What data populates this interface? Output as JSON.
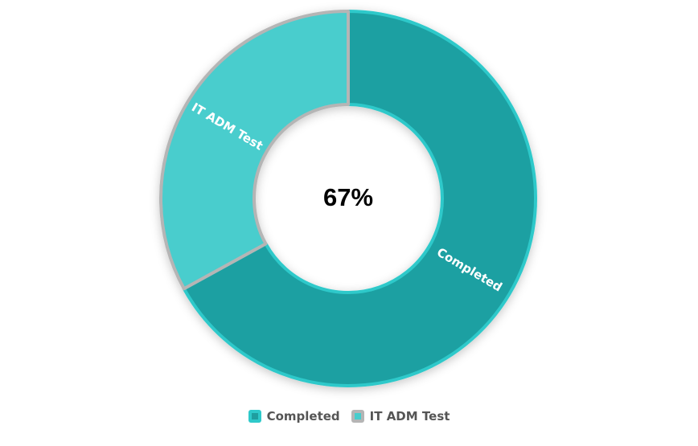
{
  "chart_data": {
    "type": "pie",
    "variant": "donut",
    "center_label": "67%",
    "slices": [
      {
        "name": "Completed",
        "value": 67,
        "color": "#1fa0a2",
        "border_color": "#2ec9ca",
        "swatch_inner": "#1f9e9f"
      },
      {
        "name": "IT ADM Test",
        "value": 33,
        "color": "#48cdcd",
        "border_color": "#b5b5b5",
        "swatch_inner": "#48cdcd"
      }
    ],
    "legend_position": "bottom",
    "title": ""
  }
}
